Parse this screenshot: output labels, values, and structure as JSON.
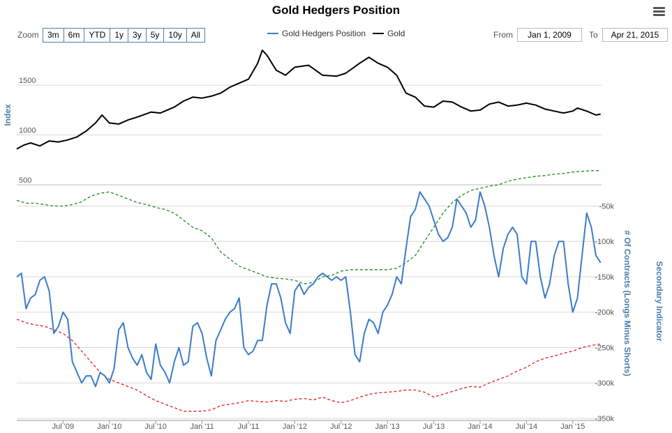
{
  "title": "Gold Hedgers Position",
  "toolbar": {
    "zoom_label": "Zoom",
    "zoom_buttons": [
      "3m",
      "6m",
      "YTD",
      "1y",
      "3y",
      "5y",
      "10y",
      "All"
    ],
    "from_label": "From",
    "from_value": "Jan 1, 2009",
    "to_label": "To",
    "to_value": "Apr 21, 2015"
  },
  "legend": [
    {
      "name": "Gold Hedgers Position",
      "color": "#3a7bc8"
    },
    {
      "name": "Gold",
      "color": "#000000"
    }
  ],
  "colors": {
    "hedgers": "#3a7bc8",
    "gold": "#000000",
    "green": "#1a8a1a",
    "red": "#e02020",
    "grid": "#d8d8d8"
  },
  "chart_data": {
    "type": "line",
    "x_range": [
      2009.0,
      2015.31
    ],
    "x_ticks": [
      {
        "x": 2009.5,
        "label": "Jul '09"
      },
      {
        "x": 2010.0,
        "label": "Jan '10"
      },
      {
        "x": 2010.5,
        "label": "Jul '10"
      },
      {
        "x": 2011.0,
        "label": "Jan '11"
      },
      {
        "x": 2011.5,
        "label": "Jul '11"
      },
      {
        "x": 2012.0,
        "label": "Jan '12"
      },
      {
        "x": 2012.5,
        "label": "Jul '12"
      },
      {
        "x": 2013.0,
        "label": "Jan '13"
      },
      {
        "x": 2013.5,
        "label": "Jul '13"
      },
      {
        "x": 2014.0,
        "label": "Jan '14"
      },
      {
        "x": 2014.5,
        "label": "Jul '14"
      },
      {
        "x": 2015.0,
        "label": "Jan '15"
      }
    ],
    "top_axis": {
      "label": "Index",
      "range": [
        500,
        1900
      ],
      "ticks": [
        500,
        1000,
        1500
      ],
      "tick_labels": [
        "500",
        "1000",
        "1500"
      ]
    },
    "bottom_axis": {
      "label": "# Of Contracts (Longs Minus Shorts)",
      "secondary_label": "Secondary Indicator",
      "range": [
        -352,
        -20
      ],
      "ticks": [
        -50,
        -100,
        -150,
        -200,
        -250,
        -300,
        -350
      ],
      "tick_labels": [
        "-50k",
        "-100k",
        "-150k",
        "-200k",
        "-250k",
        "-300k",
        "-350k"
      ]
    },
    "series": [
      {
        "name": "Gold",
        "axis": "top",
        "x": [
          2009.0,
          2009.08,
          2009.15,
          2009.25,
          2009.35,
          2009.45,
          2009.55,
          2009.65,
          2009.75,
          2009.85,
          2009.92,
          2010.0,
          2010.1,
          2010.2,
          2010.3,
          2010.45,
          2010.55,
          2010.7,
          2010.8,
          2010.9,
          2011.0,
          2011.1,
          2011.2,
          2011.3,
          2011.4,
          2011.5,
          2011.6,
          2011.65,
          2011.7,
          2011.8,
          2011.9,
          2012.0,
          2012.15,
          2012.3,
          2012.45,
          2012.55,
          2012.7,
          2012.8,
          2012.9,
          2013.0,
          2013.1,
          2013.2,
          2013.3,
          2013.4,
          2013.5,
          2013.6,
          2013.7,
          2013.8,
          2013.9,
          2014.0,
          2014.1,
          2014.2,
          2014.3,
          2014.4,
          2014.5,
          2014.6,
          2014.7,
          2014.8,
          2014.9,
          2015.0,
          2015.05,
          2015.15,
          2015.25,
          2015.3
        ],
        "values": [
          860,
          900,
          920,
          890,
          940,
          930,
          950,
          980,
          1040,
          1120,
          1200,
          1120,
          1110,
          1150,
          1180,
          1230,
          1220,
          1280,
          1340,
          1380,
          1370,
          1390,
          1420,
          1480,
          1520,
          1560,
          1720,
          1850,
          1800,
          1650,
          1600,
          1680,
          1700,
          1600,
          1590,
          1620,
          1720,
          1780,
          1720,
          1680,
          1600,
          1420,
          1380,
          1290,
          1280,
          1340,
          1330,
          1280,
          1240,
          1250,
          1310,
          1330,
          1290,
          1300,
          1320,
          1300,
          1260,
          1240,
          1220,
          1240,
          1270,
          1240,
          1200,
          1210
        ]
      },
      {
        "name": "Gold Hedgers Position",
        "axis": "bottom",
        "x": [
          2009.0,
          2009.05,
          2009.1,
          2009.15,
          2009.2,
          2009.25,
          2009.3,
          2009.35,
          2009.4,
          2009.45,
          2009.5,
          2009.55,
          2009.6,
          2009.65,
          2009.7,
          2009.75,
          2009.8,
          2009.85,
          2009.9,
          2009.95,
          2010.0,
          2010.05,
          2010.1,
          2010.15,
          2010.2,
          2010.25,
          2010.3,
          2010.35,
          2010.4,
          2010.45,
          2010.5,
          2010.55,
          2010.6,
          2010.65,
          2010.7,
          2010.75,
          2010.8,
          2010.85,
          2010.9,
          2010.95,
          2011.0,
          2011.05,
          2011.1,
          2011.15,
          2011.2,
          2011.25,
          2011.3,
          2011.35,
          2011.4,
          2011.45,
          2011.5,
          2011.55,
          2011.6,
          2011.65,
          2011.7,
          2011.75,
          2011.8,
          2011.85,
          2011.9,
          2011.95,
          2012.0,
          2012.05,
          2012.1,
          2012.15,
          2012.2,
          2012.25,
          2012.3,
          2012.35,
          2012.4,
          2012.45,
          2012.5,
          2012.55,
          2012.6,
          2012.65,
          2012.7,
          2012.75,
          2012.8,
          2012.85,
          2012.9,
          2012.95,
          2013.0,
          2013.05,
          2013.1,
          2013.15,
          2013.2,
          2013.25,
          2013.3,
          2013.35,
          2013.4,
          2013.45,
          2013.5,
          2013.55,
          2013.6,
          2013.65,
          2013.7,
          2013.75,
          2013.8,
          2013.85,
          2013.9,
          2013.95,
          2014.0,
          2014.05,
          2014.1,
          2014.15,
          2014.2,
          2014.25,
          2014.3,
          2014.35,
          2014.4,
          2014.45,
          2014.5,
          2014.55,
          2014.6,
          2014.65,
          2014.7,
          2014.75,
          2014.8,
          2014.85,
          2014.9,
          2014.95,
          2015.0,
          2015.05,
          2015.1,
          2015.15,
          2015.2,
          2015.25,
          2015.3
        ],
        "values": [
          -150,
          -145,
          -195,
          -180,
          -175,
          -155,
          -150,
          -170,
          -230,
          -220,
          -200,
          -210,
          -270,
          -285,
          -300,
          -290,
          -290,
          -305,
          -285,
          -290,
          -300,
          -280,
          -225,
          -215,
          -250,
          -265,
          -275,
          -260,
          -285,
          -295,
          -245,
          -275,
          -285,
          -300,
          -270,
          -250,
          -275,
          -270,
          -220,
          -215,
          -230,
          -265,
          -290,
          -240,
          -225,
          -210,
          -200,
          -195,
          -180,
          -250,
          -260,
          -255,
          -240,
          -240,
          -190,
          -160,
          -160,
          -180,
          -215,
          -230,
          -170,
          -160,
          -175,
          -165,
          -160,
          -150,
          -145,
          -150,
          -155,
          -150,
          -155,
          -150,
          -200,
          -260,
          -270,
          -230,
          -210,
          -215,
          -230,
          -200,
          -190,
          -175,
          -150,
          -160,
          -110,
          -65,
          -55,
          -30,
          -40,
          -50,
          -70,
          -90,
          -100,
          -95,
          -80,
          -40,
          -50,
          -60,
          -80,
          -70,
          -30,
          -50,
          -80,
          -120,
          -150,
          -110,
          -90,
          -80,
          -90,
          -150,
          -160,
          -100,
          -100,
          -150,
          -180,
          -160,
          -120,
          -100,
          -100,
          -160,
          -200,
          -180,
          -120,
          -60,
          -80,
          -120,
          -130
        ]
      },
      {
        "name": "Green Indicator",
        "axis": "bottom",
        "style": "dashed",
        "x": [
          2009.0,
          2009.1,
          2009.2,
          2009.3,
          2009.4,
          2009.5,
          2009.6,
          2009.7,
          2009.8,
          2009.9,
          2010.0,
          2010.1,
          2010.2,
          2010.3,
          2010.4,
          2010.5,
          2010.6,
          2010.7,
          2010.8,
          2010.9,
          2011.0,
          2011.1,
          2011.2,
          2011.3,
          2011.4,
          2011.5,
          2011.6,
          2011.7,
          2011.8,
          2011.9,
          2012.0,
          2012.1,
          2012.2,
          2012.3,
          2012.4,
          2012.5,
          2012.6,
          2012.7,
          2012.8,
          2012.9,
          2013.0,
          2013.1,
          2013.2,
          2013.3,
          2013.4,
          2013.5,
          2013.6,
          2013.7,
          2013.8,
          2013.9,
          2014.0,
          2014.1,
          2014.2,
          2014.3,
          2014.4,
          2014.5,
          2014.6,
          2014.7,
          2014.8,
          2014.9,
          2015.0,
          2015.1,
          2015.2,
          2015.3
        ],
        "values": [
          -42,
          -46,
          -46,
          -48,
          -50,
          -50,
          -48,
          -44,
          -36,
          -32,
          -30,
          -35,
          -40,
          -45,
          -48,
          -52,
          -55,
          -60,
          -70,
          -80,
          -85,
          -95,
          -115,
          -125,
          -135,
          -140,
          -145,
          -150,
          -152,
          -153,
          -155,
          -160,
          -158,
          -150,
          -148,
          -142,
          -140,
          -140,
          -140,
          -140,
          -140,
          -138,
          -130,
          -120,
          -100,
          -80,
          -60,
          -45,
          -35,
          -28,
          -25,
          -22,
          -20,
          -15,
          -12,
          -10,
          -8,
          -7,
          -5,
          -4,
          -2,
          -1,
          0,
          0
        ]
      },
      {
        "name": "Red Indicator",
        "axis": "bottom",
        "style": "dashed",
        "x": [
          2009.0,
          2009.1,
          2009.2,
          2009.3,
          2009.4,
          2009.5,
          2009.6,
          2009.7,
          2009.8,
          2009.9,
          2010.0,
          2010.1,
          2010.2,
          2010.3,
          2010.4,
          2010.5,
          2010.6,
          2010.7,
          2010.8,
          2010.9,
          2011.0,
          2011.1,
          2011.2,
          2011.3,
          2011.4,
          2011.5,
          2011.6,
          2011.7,
          2011.8,
          2011.9,
          2012.0,
          2012.1,
          2012.2,
          2012.3,
          2012.4,
          2012.5,
          2012.6,
          2012.7,
          2012.8,
          2012.9,
          2013.0,
          2013.1,
          2013.2,
          2013.3,
          2013.4,
          2013.5,
          2013.6,
          2013.7,
          2013.8,
          2013.9,
          2014.0,
          2014.1,
          2014.2,
          2014.3,
          2014.4,
          2014.5,
          2014.6,
          2014.7,
          2014.8,
          2014.9,
          2015.0,
          2015.1,
          2015.2,
          2015.3
        ],
        "values": [
          -210,
          -215,
          -218,
          -220,
          -225,
          -230,
          -240,
          -255,
          -270,
          -285,
          -295,
          -300,
          -305,
          -310,
          -318,
          -325,
          -330,
          -335,
          -340,
          -340,
          -340,
          -338,
          -332,
          -330,
          -328,
          -325,
          -326,
          -327,
          -325,
          -326,
          -323,
          -322,
          -324,
          -320,
          -325,
          -328,
          -325,
          -320,
          -316,
          -314,
          -313,
          -312,
          -310,
          -310,
          -313,
          -320,
          -316,
          -312,
          -308,
          -305,
          -306,
          -300,
          -295,
          -290,
          -283,
          -278,
          -270,
          -265,
          -262,
          -258,
          -255,
          -250,
          -247,
          -245
        ]
      }
    ]
  }
}
